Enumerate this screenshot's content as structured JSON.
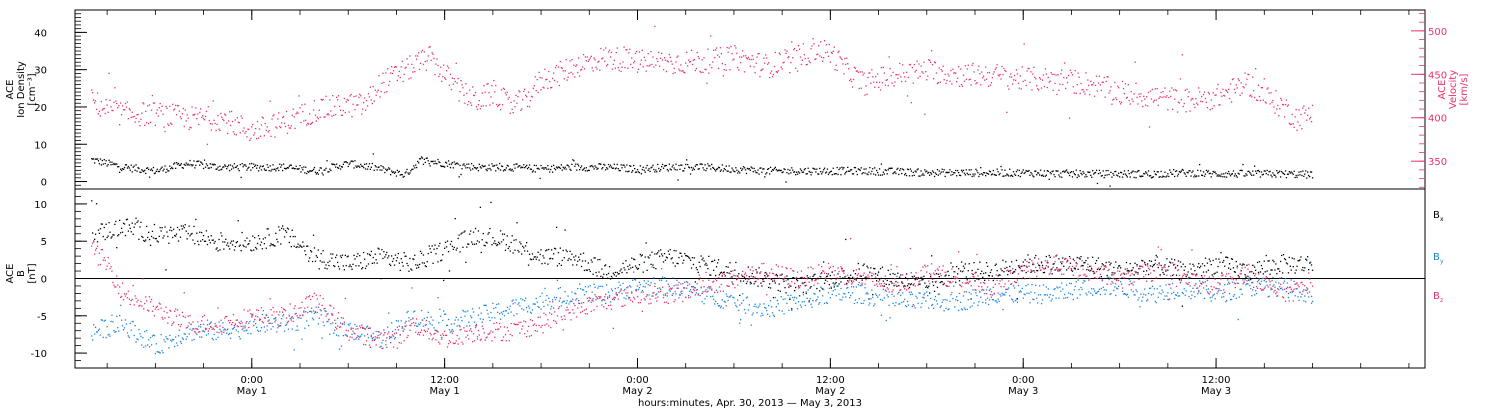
{
  "chart_data": [
    {
      "type": "scatter",
      "panel": "ion-density-velocity",
      "ylabel": [
        "ACE",
        "Ion Density",
        "[cm⁻³]"
      ],
      "y2label": [
        "ACE",
        "Velocity",
        "[km/s]"
      ],
      "ylim": [
        -2,
        46
      ],
      "y2lim": [
        318,
        524
      ],
      "yticks": [
        "0",
        "10",
        "20",
        "30",
        "40"
      ],
      "y2ticks": [
        "350",
        "400",
        "450",
        "500"
      ],
      "grid": false,
      "colors": {
        "density": "#000000",
        "velocity": "#e8336b"
      },
      "series": [
        {
          "name": "",
          "axis": "left",
          "x": [
            -10,
            -8,
            -6,
            -4,
            -2,
            0,
            2,
            4,
            6,
            7.5,
            8.5,
            9.5,
            10.5,
            12,
            14,
            16,
            18,
            20,
            22,
            24,
            26,
            28,
            30,
            32,
            34,
            36,
            38,
            40,
            42,
            44,
            46,
            48,
            50,
            52,
            54,
            56,
            58,
            60,
            62,
            64,
            66
          ],
          "y": [
            6,
            4,
            3,
            5,
            4,
            4,
            4,
            3,
            5,
            4,
            3,
            2,
            6,
            5,
            4,
            4,
            3.5,
            4,
            4,
            3.5,
            4,
            4,
            3.5,
            3,
            3,
            3,
            3,
            2.8,
            2.5,
            2.5,
            2.5,
            2.5,
            2.3,
            2.2,
            2.2,
            2.2,
            2.5,
            2.2,
            2.2,
            2.2,
            2
          ]
        },
        {
          "name": "",
          "axis": "right",
          "x": [
            -10,
            -9,
            -8,
            -6,
            -4,
            -2,
            0,
            2,
            4,
            6,
            7,
            8,
            9,
            10,
            11,
            12,
            13,
            14,
            15,
            16,
            17,
            18,
            19,
            20,
            22,
            24,
            26,
            28,
            30,
            32,
            34,
            35,
            36,
            37,
            38,
            40,
            42,
            44,
            46,
            48,
            50,
            52,
            54,
            56,
            58,
            60,
            62,
            63,
            64,
            65,
            66
          ],
          "y": [
            420,
            410,
            405,
            405,
            400,
            400,
            385,
            395,
            410,
            415,
            415,
            440,
            450,
            460,
            470,
            450,
            430,
            420,
            430,
            415,
            420,
            445,
            450,
            460,
            470,
            465,
            465,
            465,
            470,
            460,
            470,
            480,
            475,
            455,
            440,
            450,
            455,
            450,
            450,
            445,
            445,
            440,
            430,
            425,
            420,
            425,
            440,
            425,
            415,
            400,
            405
          ]
        }
      ]
    },
    {
      "type": "scatter",
      "panel": "imf-components",
      "ylabel": [
        "ACE",
        "B",
        "[nT]"
      ],
      "ylim": [
        -12,
        12
      ],
      "yticks": [
        "-10",
        "-5",
        "0",
        "5",
        "10"
      ],
      "xlabel": "hours:minutes, Apr. 30, 2013 — May  3, 2013",
      "xlim": [
        -11,
        73
      ],
      "xticks": [
        {
          "x": 0,
          "time": "0:00",
          "date": "May 1"
        },
        {
          "x": 12,
          "time": "12:00",
          "date": "May 1"
        },
        {
          "x": 24,
          "time": "0:00",
          "date": "May 2"
        },
        {
          "x": 36,
          "time": "12:00",
          "date": "May 2"
        },
        {
          "x": 48,
          "time": "0:00",
          "date": "May 3"
        },
        {
          "x": 60,
          "time": "12:00",
          "date": "May 3"
        }
      ],
      "zero_line": true,
      "legend_position": "right",
      "colors": {
        "Bx": "#000000",
        "By": "#1a86e0",
        "Bz": "#e8336b"
      },
      "series": [
        {
          "name": "Bx",
          "x": [
            -10,
            -8,
            -6,
            -4,
            -2,
            0,
            2,
            4,
            6,
            8,
            10,
            12,
            14,
            16,
            18,
            20,
            22,
            24,
            26,
            28,
            30,
            32,
            34,
            36,
            38,
            40,
            42,
            44,
            46,
            48,
            50,
            52,
            54,
            56,
            58,
            60,
            62,
            64,
            66
          ],
          "y": [
            6,
            7,
            6,
            6,
            5,
            5,
            6,
            3,
            2,
            3,
            2,
            4,
            6,
            5,
            3,
            3,
            1,
            2,
            3,
            2,
            1,
            0,
            -1,
            0,
            1,
            0,
            -1,
            1,
            1,
            2,
            2,
            2,
            1,
            2,
            1,
            2,
            1,
            2,
            2
          ]
        },
        {
          "name": "By",
          "x": [
            -10,
            -8,
            -6,
            -4,
            -2,
            0,
            2,
            4,
            6,
            8,
            10,
            12,
            14,
            16,
            18,
            20,
            22,
            24,
            26,
            28,
            30,
            32,
            34,
            36,
            38,
            40,
            42,
            44,
            46,
            48,
            50,
            52,
            54,
            56,
            58,
            60,
            62,
            64,
            66
          ],
          "y": [
            -7,
            -6,
            -9,
            -7,
            -7,
            -6,
            -6,
            -5,
            -7,
            -8,
            -5,
            -6,
            -5,
            -4,
            -3,
            -2,
            -2,
            -1,
            -1,
            -2,
            -3,
            -4,
            -3,
            -2,
            -2,
            -3,
            -3,
            -3,
            -2,
            -2,
            -2,
            -1,
            -1,
            -2,
            -1,
            -2,
            -1,
            -1,
            -2
          ]
        },
        {
          "name": "Bz",
          "x": [
            -10,
            -9,
            -8,
            -6,
            -4,
            -2,
            0,
            2,
            4,
            6,
            8,
            9,
            10,
            12,
            14,
            16,
            18,
            20,
            22,
            24,
            26,
            28,
            30,
            32,
            34,
            36,
            38,
            40,
            42,
            44,
            46,
            48,
            50,
            52,
            54,
            56,
            58,
            60,
            62,
            64,
            66
          ],
          "y": [
            4,
            2,
            -2,
            -4,
            -6,
            -6,
            -5,
            -5,
            -3,
            -7,
            -8,
            -8,
            -6,
            -8,
            -7,
            -7,
            -6,
            -4,
            -3,
            -2,
            -2,
            -1,
            0,
            1,
            0,
            1,
            0,
            -1,
            1,
            0,
            -1,
            1,
            2,
            1,
            0,
            1,
            0,
            -1,
            1,
            -2,
            -1
          ]
        }
      ]
    }
  ]
}
